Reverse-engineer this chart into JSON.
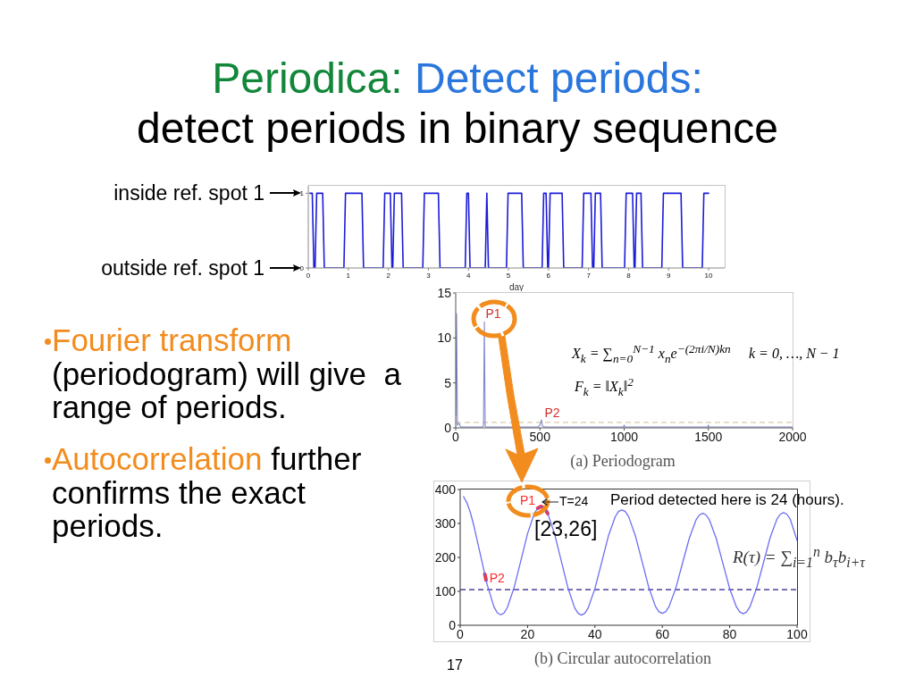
{
  "chart_data": [
    {
      "type": "other",
      "title": "Periodica: Detect periods:",
      "subtitle": "detect periods in binary sequence",
      "annotations": [
        "Fourier transform",
        "(periodogram) will give  a range of periods.",
        "Autocorrelation",
        "further",
        "confirms the exact periods."
      ]
    },
    {
      "type": "line",
      "xlabel": "day",
      "x": [
        0.04,
        0.1,
        0.14,
        0.17,
        0.21,
        0.36,
        0.4,
        0.89,
        0.93,
        1.34,
        1.38,
        1.87,
        1.91,
        2.05,
        2.09,
        2.11,
        2.15,
        2.33,
        2.37,
        2.86,
        2.9,
        3.25,
        3.29,
        3.92,
        3.96,
        4.0,
        4.04,
        4.42,
        4.46,
        4.5,
        4.95,
        4.99,
        5.33,
        5.37,
        5.84,
        5.88,
        5.94,
        5.98,
        6.0,
        6.04,
        6.34,
        6.38,
        6.84,
        6.88,
        7.06,
        7.1,
        7.13,
        7.17,
        7.3,
        7.34,
        7.9,
        7.94,
        8.1,
        8.14,
        8.16,
        8.2,
        8.31,
        8.35,
        8.83,
        8.87,
        9.31,
        9.35,
        9.84,
        9.88,
        10.0
      ],
      "values": [
        1,
        1,
        0,
        0,
        1,
        1,
        0,
        0,
        1,
        1,
        0,
        0,
        1,
        1,
        0,
        0,
        1,
        1,
        0,
        0,
        1,
        1,
        0,
        0,
        1,
        1,
        0,
        0,
        1,
        0,
        0,
        1,
        1,
        0,
        0,
        1,
        1,
        0,
        0,
        1,
        1,
        0,
        0,
        1,
        1,
        0,
        0,
        1,
        1,
        0,
        0,
        1,
        1,
        0,
        0,
        1,
        1,
        0,
        0,
        1,
        1,
        0,
        0,
        1,
        1
      ],
      "color": "#1c1cd8",
      "marker": "none",
      "xlim": [
        0,
        10.4
      ],
      "ylim": [
        0,
        1.1
      ],
      "xticks": [
        0,
        1,
        2,
        3,
        4,
        5,
        6,
        7,
        8,
        9,
        10
      ],
      "yticks": [
        0,
        1
      ],
      "annotations": [
        "inside ref. spot 1",
        "outside ref. spot 1"
      ]
    },
    {
      "type": "line",
      "x": [
        0,
        5,
        10,
        20,
        30,
        160,
        165,
        170,
        175,
        180,
        300,
        490,
        500,
        509,
        515,
        530,
        700,
        995,
        1000,
        1005,
        1300,
        1495,
        1500,
        1505,
        1800,
        2000
      ],
      "values": [
        1.4,
        12.7,
        0.3,
        0.5,
        0.1,
        0.1,
        0.2,
        11.8,
        0.2,
        0.1,
        0.1,
        0.1,
        0.3,
        0.9,
        0.2,
        0.1,
        0.1,
        0.1,
        0.3,
        0.1,
        0.1,
        0.1,
        0.3,
        0.1,
        0.1,
        0.1
      ],
      "color": "#8088cc",
      "marker": "none",
      "xlim": [
        0,
        2000
      ],
      "ylim": [
        0,
        15
      ],
      "xticks": [
        0,
        500,
        1000,
        1500,
        2000
      ],
      "yticks": [
        0,
        5,
        10,
        15
      ],
      "ref_lines": [
        {
          "axis": "y",
          "value": 0.6,
          "color": "#c8a878",
          "line_style": "dashed"
        }
      ],
      "annotations": [
        {
          "text": "P1",
          "x": 170,
          "y": 11.8
        },
        {
          "text": "P2",
          "x": 509,
          "y": 0.9
        },
        "X$_{k}$ = ∑$_{n=0}$$^{N−1}$ x$_{n}$e$^{−(2πi/N)kn}$",
        "k = 0, …, N − 1",
        "F$_{k}$ = ‖X$_{k}$‖$^{2}$",
        "(a) Periodogram"
      ]
    },
    {
      "type": "line",
      "marker": "none",
      "xlim": [
        0,
        100
      ],
      "ylim": [
        0,
        400
      ],
      "xticks": [
        0,
        20,
        40,
        60,
        80,
        100
      ],
      "yticks": [
        0,
        100,
        200,
        300,
        400
      ],
      "series": [
        {
          "color": "#6e6ef2",
          "x": [
            1,
            2,
            3,
            4,
            6,
            8,
            10,
            11,
            12,
            13,
            14,
            16,
            18,
            20,
            22,
            23,
            24,
            25,
            26,
            28,
            30,
            32,
            34,
            35,
            36,
            37,
            38,
            40,
            42,
            44,
            46,
            47,
            48,
            49,
            50,
            52,
            54,
            56,
            58,
            59,
            60,
            61,
            62,
            64,
            66,
            68,
            70,
            71,
            72,
            73,
            74,
            76,
            78,
            80,
            82,
            83,
            84,
            85,
            86,
            88,
            90,
            92,
            94,
            95,
            96,
            97,
            98,
            100
          ],
          "values": [
            379,
            361,
            333,
            296,
            208,
            120,
            55,
            37,
            31,
            36,
            52,
            111,
            190,
            270,
            329,
            345,
            350,
            345,
            329,
            270,
            190,
            110,
            51,
            35,
            30,
            35,
            51,
            108,
            185,
            263,
            319,
            335,
            340,
            335,
            320,
            264,
            188,
            111,
            55,
            40,
            35,
            40,
            55,
            109,
            183,
            256,
            310,
            325,
            330,
            325,
            310,
            256,
            182,
            108,
            54,
            39,
            34,
            39,
            54,
            109,
            183,
            258,
            312,
            327,
            332,
            327,
            312,
            250
          ]
        },
        {
          "color": "#ff2020",
          "x": [
            23,
            24,
            25,
            26
          ],
          "values": [
            345,
            350,
            345,
            329
          ]
        },
        {
          "color": "#ff2020",
          "x": [
            7.3,
            7.7
          ],
          "values": [
            151,
            133
          ]
        }
      ],
      "ref_lines": [
        {
          "axis": "y",
          "value": 105,
          "color": "#2a1a8c",
          "line_style": "dashed"
        }
      ],
      "annotations": [
        {
          "text": "P1",
          "x": 24,
          "y": 350
        },
        "T=24",
        "Period detected here is 24 (hours).",
        "[23,26]",
        {
          "text": "P2",
          "x": 7.5,
          "y": 142
        },
        "R(τ) = ∑$_{i=1}$$^{n}$ b$_{τ}$b$_{i+τ}$",
        "(b) Circular autocorrelation",
        "17"
      ]
    }
  ]
}
